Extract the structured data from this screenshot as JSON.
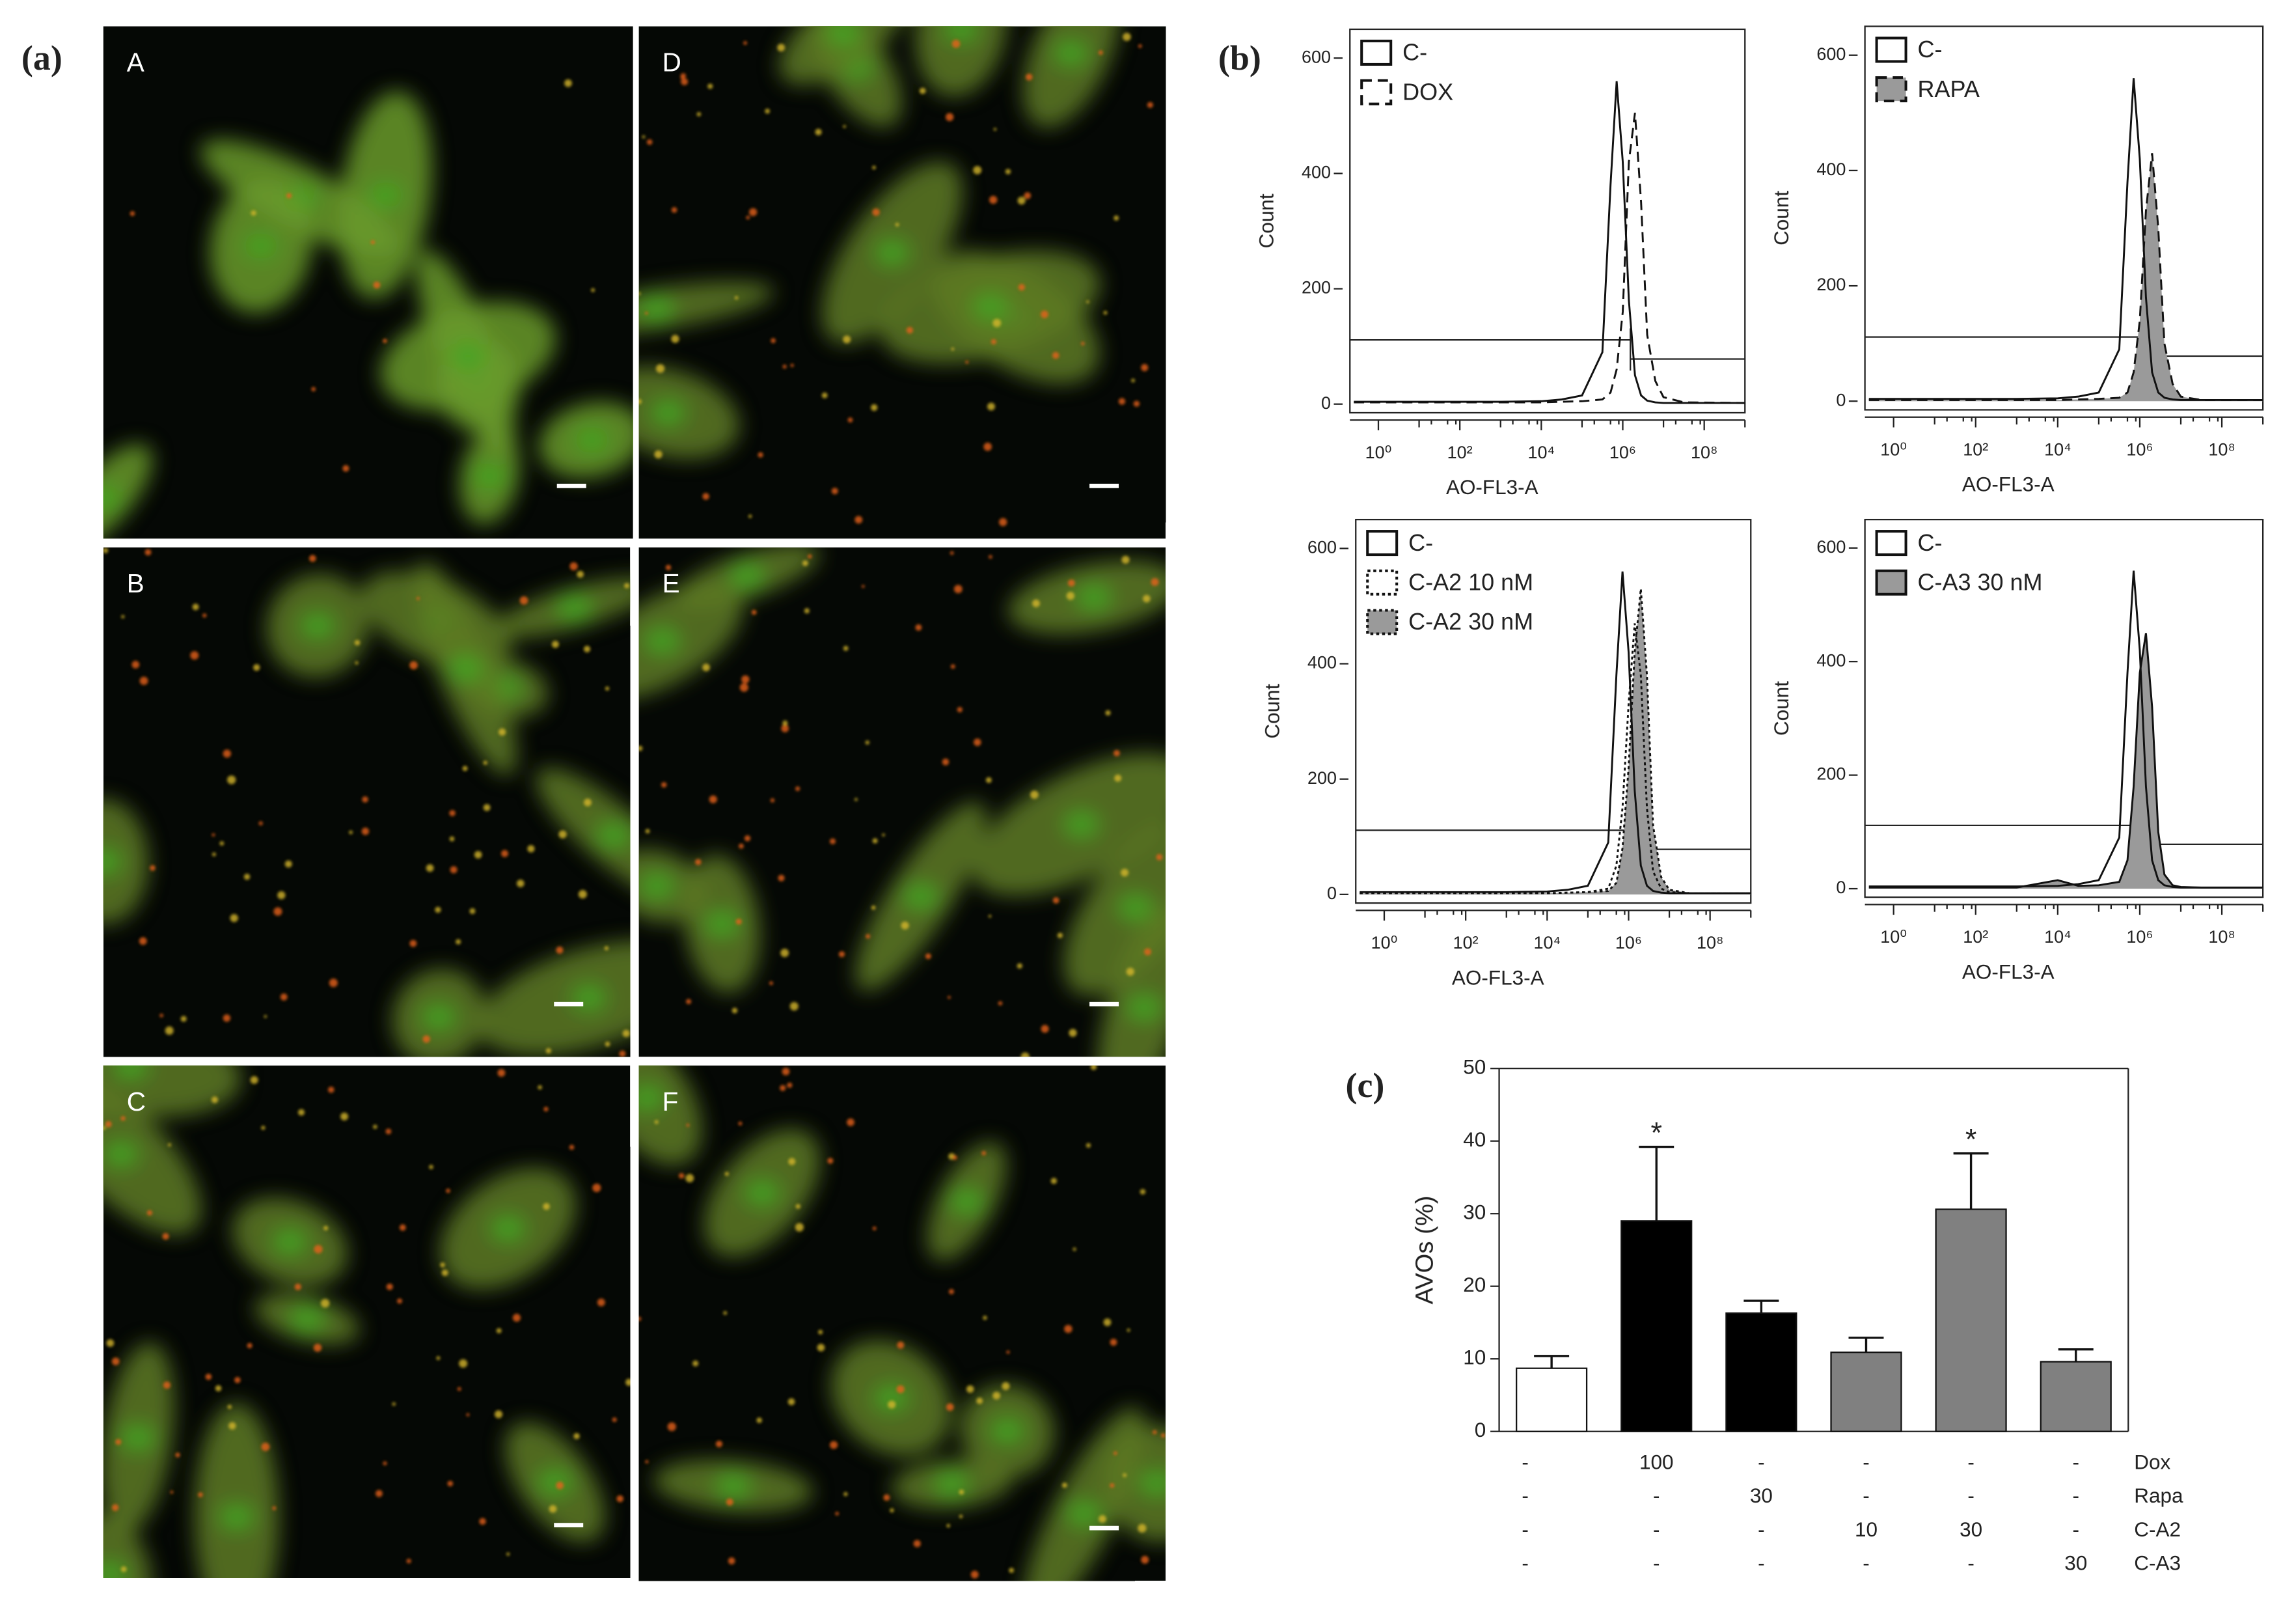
{
  "labels": {
    "a": "(a)",
    "b": "(b)",
    "c": "(c)"
  },
  "panel_a": {
    "images": [
      "A",
      "B",
      "C",
      "D",
      "E",
      "F"
    ]
  },
  "chart_data": [
    {
      "type": "histogram-overlay",
      "xlabel": "AO-FL3-A",
      "ylabel": "Count",
      "xscale": "log",
      "xlim": [
        0.2,
        1000000000
      ],
      "ylim": [
        -15,
        650
      ],
      "xticks": [
        {
          "value": 1,
          "label": "10⁰"
        },
        {
          "value": 100,
          "label": "10²"
        },
        {
          "value": 10000,
          "label": "10⁴"
        },
        {
          "value": 1000000,
          "label": "10⁶"
        },
        {
          "value": 100000000,
          "label": "10⁸"
        }
      ],
      "yticks": [
        0,
        200,
        400,
        600
      ],
      "x": [
        0.25,
        1000,
        10000,
        31623,
        100000,
        316228,
        501187,
        707946,
        1000000,
        1412538,
        1995262,
        2818383,
        3981072,
        6309573,
        10000000,
        31622777,
        1000000000
      ],
      "series": [
        {
          "name": "C-",
          "color": "none",
          "dash": "solid",
          "values": [
            4,
            4,
            5,
            8,
            15,
            90,
            380,
            560,
            420,
            180,
            50,
            15,
            6,
            3,
            2,
            2,
            2
          ]
        },
        {
          "name": "DOX",
          "color": "none",
          "dash": "dashed",
          "values": [
            3,
            3,
            3,
            4,
            5,
            8,
            20,
            60,
            160,
            420,
            505,
            350,
            120,
            40,
            12,
            3,
            2
          ]
        }
      ]
    },
    {
      "type": "histogram-overlay",
      "xlabel": "AO-FL3-A",
      "ylabel": "Count",
      "xscale": "log",
      "xlim": [
        0.2,
        1000000000
      ],
      "ylim": [
        -15,
        650
      ],
      "xticks": [
        {
          "value": 1,
          "label": "10⁰"
        },
        {
          "value": 100,
          "label": "10²"
        },
        {
          "value": 10000,
          "label": "10⁴"
        },
        {
          "value": 1000000,
          "label": "10⁶"
        },
        {
          "value": 100000000,
          "label": "10⁸"
        }
      ],
      "yticks": [
        0,
        200,
        400,
        600
      ],
      "x": [
        0.25,
        1000,
        10000,
        31623,
        100000,
        316228,
        501187,
        707946,
        1000000,
        1412538,
        1995262,
        2818383,
        3981072,
        6309573,
        10000000,
        31622777,
        1000000000
      ],
      "series": [
        {
          "name": "C-",
          "color": "none",
          "dash": "solid",
          "values": [
            4,
            4,
            5,
            8,
            15,
            90,
            380,
            560,
            420,
            180,
            50,
            15,
            6,
            3,
            2,
            2,
            2
          ]
        },
        {
          "name": "RAPA",
          "color": "#9a9a9a",
          "dash": "dashed",
          "values": [
            2,
            2,
            2,
            3,
            4,
            6,
            15,
            50,
            140,
            330,
            430,
            300,
            100,
            30,
            8,
            2,
            2
          ]
        }
      ]
    },
    {
      "type": "histogram-overlay",
      "xlabel": "AO-FL3-A",
      "ylabel": "Count",
      "xscale": "log",
      "xlim": [
        0.2,
        1000000000
      ],
      "ylim": [
        -15,
        650
      ],
      "xticks": [
        {
          "value": 1,
          "label": "10⁰"
        },
        {
          "value": 100,
          "label": "10²"
        },
        {
          "value": 10000,
          "label": "10⁴"
        },
        {
          "value": 1000000,
          "label": "10⁶"
        },
        {
          "value": 100000000,
          "label": "10⁸"
        }
      ],
      "yticks": [
        0,
        200,
        400,
        600
      ],
      "x": [
        0.25,
        1000,
        10000,
        31623,
        100000,
        316228,
        501187,
        707946,
        1000000,
        1412538,
        1995262,
        2818383,
        3981072,
        6309573,
        10000000,
        31622777,
        1000000000
      ],
      "series": [
        {
          "name": "C-",
          "color": "none",
          "dash": "solid",
          "values": [
            4,
            4,
            5,
            8,
            15,
            90,
            380,
            560,
            420,
            180,
            50,
            15,
            6,
            3,
            2,
            2,
            2
          ]
        },
        {
          "name": "C-A2 10 nM",
          "color": "none",
          "dash": "dotted",
          "values": [
            2,
            2,
            2,
            3,
            4,
            10,
            50,
            150,
            330,
            470,
            380,
            150,
            40,
            10,
            4,
            2,
            2
          ]
        },
        {
          "name": "C-A2 30 nM",
          "color": "#9a9a9a",
          "dash": "dotted",
          "values": [
            2,
            2,
            2,
            3,
            4,
            6,
            20,
            80,
            220,
            420,
            530,
            380,
            120,
            30,
            8,
            2,
            2
          ]
        }
      ]
    },
    {
      "type": "histogram-overlay",
      "xlabel": "AO-FL3-A",
      "ylabel": "Count",
      "xscale": "log",
      "xlim": [
        0.2,
        1000000000
      ],
      "ylim": [
        -15,
        650
      ],
      "xticks": [
        {
          "value": 1,
          "label": "10⁰"
        },
        {
          "value": 100,
          "label": "10²"
        },
        {
          "value": 10000,
          "label": "10⁴"
        },
        {
          "value": 1000000,
          "label": "10⁶"
        },
        {
          "value": 100000000,
          "label": "10⁸"
        }
      ],
      "yticks": [
        0,
        200,
        400,
        600
      ],
      "x": [
        0.25,
        1000,
        10000,
        31623,
        100000,
        316228,
        501187,
        707946,
        1000000,
        1412538,
        1995262,
        2818383,
        3981072,
        6309573,
        10000000,
        31622777,
        1000000000
      ],
      "series": [
        {
          "name": "C-",
          "color": "none",
          "dash": "solid",
          "values": [
            4,
            4,
            5,
            8,
            15,
            90,
            380,
            560,
            420,
            180,
            50,
            15,
            6,
            3,
            2,
            2,
            2
          ]
        },
        {
          "name": "C-A3 30 nM",
          "color": "#9a9a9a",
          "dash": "solid",
          "values": [
            2,
            2,
            15,
            5,
            6,
            12,
            50,
            180,
            380,
            450,
            320,
            100,
            25,
            6,
            3,
            2,
            2
          ]
        }
      ]
    },
    {
      "type": "bar",
      "ylabel": "AVOs (%)",
      "ylim": [
        0,
        50
      ],
      "yticks": [
        0,
        10,
        20,
        30,
        40,
        50
      ],
      "values": [
        8.7,
        29,
        16.3,
        10.9,
        30.6,
        9.6
      ],
      "errors": [
        1.7,
        10.2,
        1.7,
        2,
        7.7,
        1.7
      ],
      "colors": [
        "#ffffff",
        "#000000",
        "#000000",
        "#808080",
        "#808080",
        "#808080"
      ],
      "significance": [
        null,
        "*",
        null,
        null,
        "*",
        null
      ],
      "treatments": [
        {
          "name": "Dox",
          "cells": [
            "-",
            "100",
            "-",
            "-",
            "-",
            "-"
          ]
        },
        {
          "name": "Rapa",
          "cells": [
            "-",
            "-",
            "30",
            "-",
            "-",
            "-"
          ]
        },
        {
          "name": "C-A2",
          "cells": [
            "-",
            "-",
            "-",
            "10",
            "30",
            "-"
          ]
        },
        {
          "name": "C-A3",
          "cells": [
            "-",
            "-",
            "-",
            "-",
            "-",
            "30"
          ]
        }
      ]
    }
  ]
}
